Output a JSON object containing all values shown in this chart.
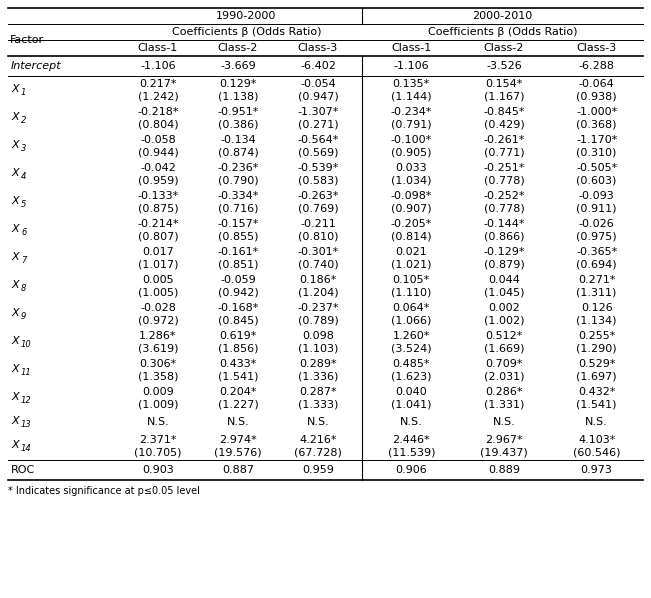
{
  "period1": "1990-2000",
  "period2": "2000-2010",
  "coeff_label": "Coefficients β (Odds Ratio)",
  "classes": [
    "Class-1",
    "Class-2",
    "Class-3"
  ],
  "factors": [
    "Intercept",
    "X1",
    "X2",
    "X3",
    "X4",
    "X5",
    "X6",
    "X7",
    "X8",
    "X9",
    "X10",
    "X11",
    "X12",
    "X13",
    "X14",
    "ROC"
  ],
  "factor_subscripts": [
    null,
    "1",
    "2",
    "3",
    "4",
    "5",
    "6",
    "7",
    "8",
    "9",
    "10",
    "11",
    "12",
    "13",
    "14",
    null
  ],
  "data_p1": [
    [
      "-1.106",
      "-3.669",
      "-6.402"
    ],
    [
      "0.217*",
      "0.129*",
      "-0.054"
    ],
    [
      "-0.218*",
      "-0.951*",
      "-1.307*"
    ],
    [
      "-0.058",
      "-0.134",
      "-0.564*"
    ],
    [
      "-0.042",
      "-0.236*",
      "-0.539*"
    ],
    [
      "-0.133*",
      "-0.334*",
      "-0.263*"
    ],
    [
      "-0.214*",
      "-0.157*",
      "-0.211"
    ],
    [
      "0.017",
      "-0.161*",
      "-0.301*"
    ],
    [
      "0.005",
      "-0.059",
      "0.186*"
    ],
    [
      "-0.028",
      "-0.168*",
      "-0.237*"
    ],
    [
      "1.286*",
      "0.619*",
      "0.098"
    ],
    [
      "0.306*",
      "0.433*",
      "0.289*"
    ],
    [
      "0.009",
      "0.204*",
      "0.287*"
    ],
    [
      "N.S.",
      "N.S.",
      "N.S."
    ],
    [
      "2.371*",
      "2.974*",
      "4.216*"
    ],
    [
      "0.903",
      "0.887",
      "0.959"
    ]
  ],
  "data_p1_sub": [
    [
      "",
      "",
      ""
    ],
    [
      "(1.242)",
      "(1.138)",
      "(0.947)"
    ],
    [
      "(0.804)",
      "(0.386)",
      "(0.271)"
    ],
    [
      "(0.944)",
      "(0.874)",
      "(0.569)"
    ],
    [
      "(0.959)",
      "(0.790)",
      "(0.583)"
    ],
    [
      "(0.875)",
      "(0.716)",
      "(0.769)"
    ],
    [
      "(0.807)",
      "(0.855)",
      "(0.810)"
    ],
    [
      "(1.017)",
      "(0.851)",
      "(0.740)"
    ],
    [
      "(1.005)",
      "(0.942)",
      "(1.204)"
    ],
    [
      "(0.972)",
      "(0.845)",
      "(0.789)"
    ],
    [
      "(3.619)",
      "(1.856)",
      "(1.103)"
    ],
    [
      "(1.358)",
      "(1.541)",
      "(1.336)"
    ],
    [
      "(1.009)",
      "(1.227)",
      "(1.333)"
    ],
    [
      "",
      "",
      ""
    ],
    [
      "(10.705)",
      "(19.576)",
      "(67.728)"
    ],
    [
      "",
      "",
      ""
    ]
  ],
  "data_p2": [
    [
      "-1.106",
      "-3.526",
      "-6.288"
    ],
    [
      "0.135*",
      "0.154*",
      "-0.064"
    ],
    [
      "-0.234*",
      "-0.845*",
      "-1.000*"
    ],
    [
      "-0.100*",
      "-0.261*",
      "-1.170*"
    ],
    [
      "0.033",
      "-0.251*",
      "-0.505*"
    ],
    [
      "-0.098*",
      "-0.252*",
      "-0.093"
    ],
    [
      "-0.205*",
      "-0.144*",
      "-0.026"
    ],
    [
      "0.021",
      "-0.129*",
      "-0.365*"
    ],
    [
      "0.105*",
      "0.044",
      "0.271*"
    ],
    [
      "0.064*",
      "0.002",
      "0.126"
    ],
    [
      "1.260*",
      "0.512*",
      "0.255*"
    ],
    [
      "0.485*",
      "0.709*",
      "0.529*"
    ],
    [
      "0.040",
      "0.286*",
      "0.432*"
    ],
    [
      "N.S.",
      "N.S.",
      "N.S."
    ],
    [
      "2.446*",
      "2.967*",
      "4.103*"
    ],
    [
      "0.906",
      "0.889",
      "0.973"
    ]
  ],
  "data_p2_sub": [
    [
      "",
      "",
      ""
    ],
    [
      "(1.144)",
      "(1.167)",
      "(0.938)"
    ],
    [
      "(0.791)",
      "(0.429)",
      "(0.368)"
    ],
    [
      "(0.905)",
      "(0.771)",
      "(0.310)"
    ],
    [
      "(1.034)",
      "(0.778)",
      "(0.603)"
    ],
    [
      "(0.907)",
      "(0.778)",
      "(0.911)"
    ],
    [
      "(0.814)",
      "(0.866)",
      "(0.975)"
    ],
    [
      "(1.021)",
      "(0.879)",
      "(0.694)"
    ],
    [
      "(1.110)",
      "(1.045)",
      "(1.311)"
    ],
    [
      "(1.066)",
      "(1.002)",
      "(1.134)"
    ],
    [
      "(3.524)",
      "(1.669)",
      "(1.290)"
    ],
    [
      "(1.623)",
      "(2.031)",
      "(1.697)"
    ],
    [
      "(1.041)",
      "(1.331)",
      "(1.541)"
    ],
    [
      "",
      "",
      ""
    ],
    [
      "(11.539)",
      "(19.437)",
      "(60.546)"
    ],
    [
      "",
      "",
      ""
    ]
  ],
  "footnote": "* Indicates significance at p≤0.05 level",
  "bg_color": "#ffffff",
  "text_color": "#000000",
  "line_color": "#000000"
}
